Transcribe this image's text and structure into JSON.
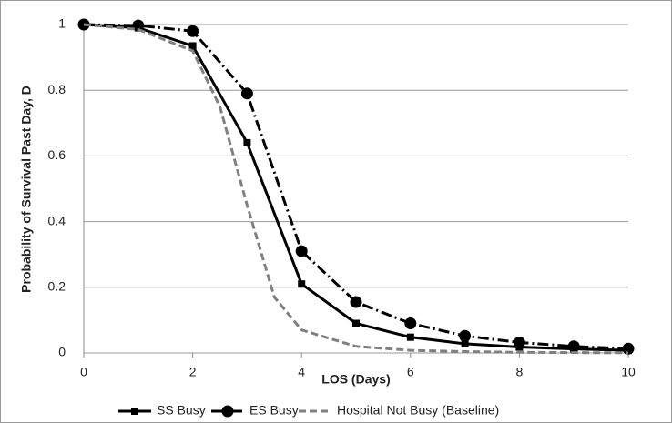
{
  "chart_data": {
    "type": "line",
    "xlabel": "LOS (Days)",
    "ylabel": "Probability of Survival Past Day, D",
    "xlim": [
      0,
      10
    ],
    "xticks": [
      0,
      2,
      4,
      6,
      8,
      10
    ],
    "ylim": [
      0,
      1
    ],
    "yticks": [
      0,
      0.2,
      0.4,
      0.6,
      0.8,
      1
    ],
    "grid": true,
    "legend": "bottom",
    "series": [
      {
        "name": "SS Busy",
        "color": "#000000",
        "marker": "square",
        "dash": "solid",
        "x": [
          0,
          1,
          2,
          3,
          4,
          5,
          6,
          7,
          8,
          9,
          10
        ],
        "values": [
          1,
          0.99,
          0.935,
          0.64,
          0.21,
          0.09,
          0.048,
          0.028,
          0.018,
          0.012,
          0.008
        ]
      },
      {
        "name": "ES Busy",
        "color": "#000000",
        "marker": "circle",
        "dash": "dashdot",
        "x": [
          0,
          1,
          2,
          3,
          4,
          5,
          6,
          7,
          8,
          9,
          10
        ],
        "values": [
          1,
          0.997,
          0.98,
          0.79,
          0.31,
          0.155,
          0.09,
          0.052,
          0.032,
          0.02,
          0.013
        ]
      },
      {
        "name": "Hospital Not Busy (Baseline)",
        "color": "#808080",
        "marker": "none",
        "dash": "dashed",
        "x": [
          0,
          1,
          2,
          2.5,
          3,
          3.5,
          4,
          5,
          6,
          7,
          8,
          9,
          10
        ],
        "values": [
          1,
          0.985,
          0.92,
          0.75,
          0.45,
          0.17,
          0.07,
          0.02,
          0.008,
          0.004,
          0.002,
          0.001,
          0.0005
        ]
      }
    ]
  }
}
